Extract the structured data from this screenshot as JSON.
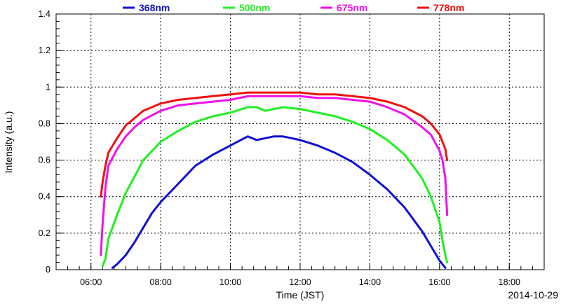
{
  "chart_data": {
    "type": "line",
    "title": "",
    "xlabel": "Time (JST)",
    "ylabel": "Intensity (a.u.)",
    "date": "2014-10-29",
    "xlim": [
      "05:00",
      "19:00"
    ],
    "ylim": [
      0,
      1.4
    ],
    "x_ticks": [
      "06:00",
      "08:00",
      "10:00",
      "12:00",
      "14:00",
      "16:00",
      "18:00"
    ],
    "y_ticks": [
      "0",
      "0.2",
      "0.4",
      "0.6",
      "0.8",
      "1",
      "1.2",
      "1.4"
    ],
    "grid": true,
    "legend_position": "top",
    "series": [
      {
        "name": "368nm",
        "color": "#1010d0",
        "x": [
          "06:37",
          "06:45",
          "07:00",
          "07:15",
          "07:30",
          "07:45",
          "08:00",
          "08:30",
          "09:00",
          "09:30",
          "10:00",
          "10:30",
          "10:45",
          "11:00",
          "11:15",
          "11:30",
          "11:45",
          "12:00",
          "12:30",
          "13:00",
          "13:30",
          "14:00",
          "14:30",
          "15:00",
          "15:30",
          "15:45",
          "16:00",
          "16:10"
        ],
        "y": [
          0.01,
          0.03,
          0.08,
          0.15,
          0.23,
          0.31,
          0.37,
          0.47,
          0.57,
          0.63,
          0.68,
          0.73,
          0.71,
          0.72,
          0.73,
          0.73,
          0.72,
          0.71,
          0.68,
          0.64,
          0.59,
          0.52,
          0.44,
          0.34,
          0.21,
          0.13,
          0.05,
          0.01
        ]
      },
      {
        "name": "500nm",
        "color": "#20f020",
        "x": [
          "06:20",
          "06:25",
          "06:30",
          "06:45",
          "07:00",
          "07:15",
          "07:30",
          "08:00",
          "08:30",
          "09:00",
          "09:30",
          "10:00",
          "10:30",
          "10:45",
          "11:00",
          "11:30",
          "12:00",
          "12:30",
          "13:00",
          "13:30",
          "14:00",
          "14:30",
          "15:00",
          "15:30",
          "15:45",
          "16:00",
          "16:05",
          "16:10",
          "16:13"
        ],
        "y": [
          0.02,
          0.06,
          0.17,
          0.3,
          0.42,
          0.51,
          0.6,
          0.7,
          0.76,
          0.81,
          0.84,
          0.86,
          0.89,
          0.89,
          0.87,
          0.89,
          0.88,
          0.86,
          0.84,
          0.81,
          0.77,
          0.71,
          0.63,
          0.5,
          0.4,
          0.26,
          0.16,
          0.08,
          0.04
        ]
      },
      {
        "name": "675nm",
        "color": "#f010f0",
        "x": [
          "06:17",
          "06:20",
          "06:25",
          "06:30",
          "06:45",
          "07:00",
          "07:15",
          "07:30",
          "08:00",
          "08:30",
          "09:00",
          "09:30",
          "10:00",
          "10:30",
          "11:00",
          "11:30",
          "12:00",
          "12:30",
          "13:00",
          "13:30",
          "14:00",
          "14:30",
          "15:00",
          "15:30",
          "15:45",
          "16:00",
          "16:05",
          "16:10",
          "16:13"
        ],
        "y": [
          0.08,
          0.25,
          0.45,
          0.57,
          0.66,
          0.73,
          0.78,
          0.82,
          0.87,
          0.9,
          0.91,
          0.92,
          0.93,
          0.95,
          0.95,
          0.95,
          0.95,
          0.94,
          0.94,
          0.93,
          0.92,
          0.89,
          0.85,
          0.78,
          0.74,
          0.65,
          0.6,
          0.5,
          0.3
        ]
      },
      {
        "name": "778nm",
        "color": "#f01010",
        "x": [
          "06:17",
          "06:20",
          "06:25",
          "06:30",
          "06:45",
          "07:00",
          "07:15",
          "07:30",
          "08:00",
          "08:30",
          "09:00",
          "09:30",
          "10:00",
          "10:30",
          "11:00",
          "11:30",
          "12:00",
          "12:30",
          "13:00",
          "13:30",
          "14:00",
          "14:30",
          "15:00",
          "15:30",
          "15:45",
          "16:00",
          "16:05",
          "16:10",
          "16:13"
        ],
        "y": [
          0.4,
          0.48,
          0.57,
          0.64,
          0.72,
          0.79,
          0.83,
          0.87,
          0.91,
          0.93,
          0.94,
          0.95,
          0.96,
          0.97,
          0.97,
          0.97,
          0.97,
          0.96,
          0.96,
          0.95,
          0.94,
          0.92,
          0.89,
          0.84,
          0.8,
          0.74,
          0.7,
          0.66,
          0.6
        ]
      }
    ]
  }
}
